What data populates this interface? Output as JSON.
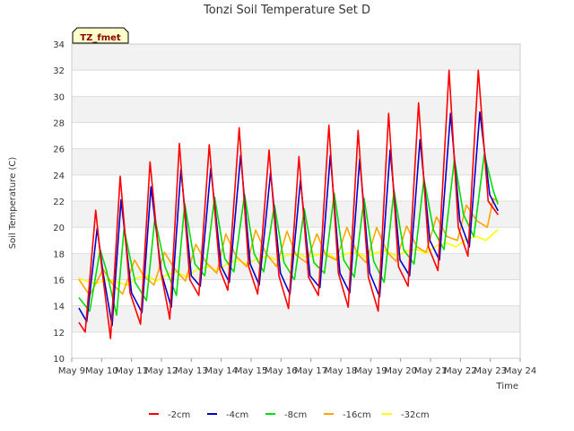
{
  "chart_data": {
    "type": "line",
    "title": "Tonzi Soil Temperature Set D",
    "xlabel": "Time",
    "ylabel": "Soil Temperature (C)",
    "badge": "TZ_fmet",
    "xlim": [
      9,
      24
    ],
    "ylim": [
      10,
      34
    ],
    "yticks": [
      10,
      12,
      14,
      16,
      18,
      20,
      22,
      24,
      26,
      28,
      30,
      32,
      34
    ],
    "xticks": [
      {
        "pos": 9,
        "label": "May 9"
      },
      {
        "pos": 10,
        "label": "May 10"
      },
      {
        "pos": 11,
        "label": "May 11"
      },
      {
        "pos": 12,
        "label": "May 12"
      },
      {
        "pos": 13,
        "label": "May 13"
      },
      {
        "pos": 14,
        "label": "May 14"
      },
      {
        "pos": 15,
        "label": "May 15"
      },
      {
        "pos": 16,
        "label": "May 16"
      },
      {
        "pos": 17,
        "label": "May 17"
      },
      {
        "pos": 18,
        "label": "May 18"
      },
      {
        "pos": 19,
        "label": "May 19"
      },
      {
        "pos": 20,
        "label": "May 20"
      },
      {
        "pos": 21,
        "label": "May 21"
      },
      {
        "pos": 22,
        "label": "May 22"
      },
      {
        "pos": 23,
        "label": "May 23"
      },
      {
        "pos": 24,
        "label": "May 24"
      }
    ],
    "grid": true,
    "legend_position": "bottom",
    "x_units": "day of May",
    "series": [
      {
        "name": "-2cm",
        "color": "#ff0000",
        "x": [
          9.25,
          9.45,
          9.8,
          10.0,
          10.3,
          10.62,
          10.95,
          11.3,
          11.62,
          11.95,
          12.28,
          12.6,
          12.95,
          13.25,
          13.6,
          13.95,
          14.22,
          14.6,
          14.92,
          15.22,
          15.6,
          15.93,
          16.25,
          16.6,
          16.92,
          17.25,
          17.6,
          17.92,
          18.25,
          18.58,
          18.92,
          19.25,
          19.6,
          19.93,
          20.25,
          20.6,
          20.93,
          21.25,
          21.62,
          21.93,
          22.25,
          22.6,
          22.93,
          23.25
        ],
        "y": [
          12.7,
          12.0,
          21.3,
          17.0,
          11.5,
          23.9,
          15.0,
          12.6,
          25.0,
          17.0,
          13.0,
          26.4,
          16.0,
          14.8,
          26.3,
          16.8,
          15.2,
          27.6,
          17.0,
          14.9,
          25.9,
          16.3,
          13.8,
          25.4,
          16.2,
          14.8,
          27.8,
          16.5,
          13.9,
          27.4,
          16.2,
          13.6,
          28.7,
          17.0,
          15.5,
          29.5,
          18.5,
          16.7,
          32.0,
          20.0,
          17.8,
          32.0,
          22.0,
          21.0
        ]
      },
      {
        "name": "-4cm",
        "color": "#0000cc",
        "x": [
          9.25,
          9.5,
          9.85,
          10.05,
          10.35,
          10.65,
          11.0,
          11.35,
          11.65,
          12.0,
          12.33,
          12.65,
          13.0,
          13.3,
          13.65,
          14.0,
          14.27,
          14.65,
          14.97,
          15.27,
          15.65,
          15.98,
          16.3,
          16.65,
          16.97,
          17.3,
          17.65,
          17.97,
          18.3,
          18.63,
          18.97,
          19.3,
          19.65,
          19.98,
          20.3,
          20.65,
          20.98,
          21.3,
          21.67,
          21.98,
          22.3,
          22.65,
          22.98,
          23.25
        ],
        "y": [
          13.8,
          12.8,
          19.9,
          16.5,
          12.5,
          22.1,
          15.0,
          13.5,
          23.1,
          16.5,
          13.9,
          24.4,
          16.3,
          15.5,
          24.5,
          17.0,
          15.8,
          25.5,
          17.2,
          15.6,
          24.2,
          16.5,
          14.9,
          23.6,
          16.3,
          15.4,
          25.5,
          16.5,
          15.0,
          25.2,
          16.5,
          14.7,
          25.9,
          17.5,
          16.3,
          26.7,
          19.0,
          17.5,
          28.7,
          20.5,
          18.5,
          28.8,
          22.5,
          21.3
        ]
      },
      {
        "name": "-8cm",
        "color": "#00dd00",
        "x": [
          9.25,
          9.6,
          9.95,
          10.15,
          10.5,
          10.75,
          11.12,
          11.5,
          11.78,
          12.12,
          12.5,
          12.78,
          13.12,
          13.45,
          13.78,
          14.12,
          14.42,
          14.78,
          15.1,
          15.42,
          15.78,
          16.1,
          16.45,
          16.78,
          17.1,
          17.45,
          17.78,
          18.1,
          18.45,
          18.78,
          19.1,
          19.45,
          19.78,
          20.1,
          20.45,
          20.78,
          21.1,
          21.45,
          21.8,
          22.1,
          22.45,
          22.8,
          23.1,
          23.25
        ],
        "y": [
          14.6,
          13.6,
          18.3,
          16.8,
          13.3,
          19.9,
          15.8,
          14.4,
          20.7,
          17.0,
          14.8,
          21.8,
          17.2,
          16.3,
          22.3,
          17.6,
          16.6,
          22.5,
          18.0,
          16.6,
          21.7,
          17.3,
          16.0,
          21.4,
          17.3,
          16.5,
          22.6,
          17.5,
          16.2,
          22.2,
          17.4,
          15.8,
          22.8,
          18.3,
          17.2,
          23.7,
          19.8,
          18.3,
          25.2,
          21.0,
          19.3,
          25.6,
          22.8,
          21.8
        ]
      },
      {
        "name": "-16cm",
        "color": "#ffa500",
        "x": [
          9.25,
          9.6,
          10.05,
          10.35,
          10.7,
          11.1,
          11.4,
          11.75,
          12.1,
          12.45,
          12.8,
          13.15,
          13.5,
          13.85,
          14.15,
          14.5,
          14.85,
          15.15,
          15.5,
          15.85,
          16.2,
          16.5,
          16.85,
          17.2,
          17.5,
          17.85,
          18.2,
          18.55,
          18.85,
          19.2,
          19.55,
          19.85,
          20.2,
          20.55,
          20.85,
          21.2,
          21.55,
          21.9,
          22.2,
          22.55,
          22.9,
          23.1,
          23.25
        ],
        "y": [
          16.0,
          14.8,
          16.8,
          15.7,
          14.9,
          17.5,
          16.3,
          15.6,
          18.1,
          16.8,
          15.9,
          18.7,
          17.3,
          16.5,
          19.5,
          17.8,
          17.0,
          19.8,
          18.0,
          17.0,
          19.7,
          17.9,
          17.3,
          19.5,
          17.9,
          17.5,
          20.0,
          18.0,
          17.3,
          20.0,
          18.1,
          17.4,
          20.1,
          18.5,
          18.1,
          20.8,
          19.3,
          19.0,
          21.7,
          20.5,
          20.0,
          22.2,
          22.0
        ]
      },
      {
        "name": "-32cm",
        "color": "#ffff00",
        "x": [
          9.25,
          9.5,
          9.8,
          10.15,
          10.5,
          10.85,
          11.15,
          11.5,
          11.85,
          12.2,
          12.5,
          12.85,
          13.2,
          13.55,
          13.85,
          14.2,
          14.55,
          14.85,
          15.2,
          15.55,
          15.85,
          16.2,
          16.55,
          16.85,
          17.2,
          17.55,
          17.85,
          18.2,
          18.55,
          18.85,
          19.2,
          19.55,
          19.85,
          20.2,
          20.55,
          20.85,
          21.2,
          21.55,
          21.85,
          22.2,
          22.55,
          22.85,
          23.2,
          23.25
        ],
        "y": [
          16.1,
          15.9,
          15.7,
          16.0,
          15.8,
          15.6,
          16.1,
          16.3,
          15.9,
          16.4,
          16.6,
          16.2,
          16.8,
          17.0,
          16.7,
          17.2,
          17.5,
          17.2,
          17.6,
          17.8,
          17.5,
          17.9,
          18.0,
          17.7,
          17.9,
          18.0,
          17.6,
          18.0,
          18.1,
          17.7,
          18.1,
          18.2,
          17.8,
          18.2,
          18.3,
          18.0,
          18.6,
          18.8,
          18.5,
          19.1,
          19.3,
          19.0,
          19.7,
          19.8
        ]
      }
    ]
  }
}
